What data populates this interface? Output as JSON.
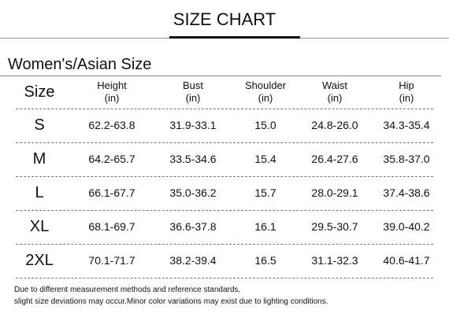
{
  "header": {
    "title": "SIZE CHART"
  },
  "subtitle": "Women's/Asian Size",
  "table": {
    "columns": [
      {
        "name": "Size"
      },
      {
        "name": "Height",
        "unit": "(in)"
      },
      {
        "name": "Bust",
        "unit": "(in)"
      },
      {
        "name": "Shoulder",
        "unit": "(in)"
      },
      {
        "name": "Waist",
        "unit": "(in)"
      },
      {
        "name": "Hip",
        "unit": "(in)"
      }
    ],
    "rows": [
      [
        "S",
        "62.2-63.8",
        "31.9-33.1",
        "15.0",
        "24.8-26.0",
        "34.3-35.4"
      ],
      [
        "M",
        "64.2-65.7",
        "33.5-34.6",
        "15.4",
        "26.4-27.6",
        "35.8-37.0"
      ],
      [
        "L",
        "66.1-67.7",
        "35.0-36.2",
        "15.7",
        "28.0-29.1",
        "37.4-38.6"
      ],
      [
        "XL",
        "68.1-69.7",
        "36.6-37.8",
        "16.1",
        "29.5-30.7",
        "39.0-40.2"
      ],
      [
        "2XL",
        "70.1-71.7",
        "38.2-39.4",
        "16.5",
        "31.1-32.3",
        "40.6-41.7"
      ]
    ]
  },
  "notes": [
    "Due to different measurement methods and reference standards,",
    "slight size deviations may occur.Minor color variations may exist due to lighting conditions."
  ]
}
